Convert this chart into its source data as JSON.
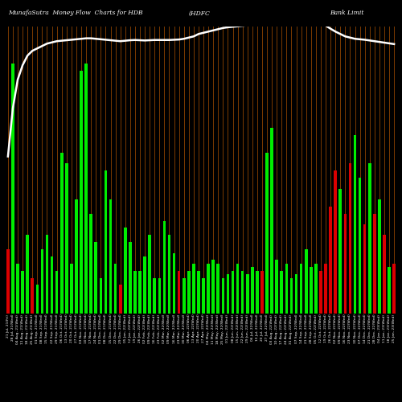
{
  "title_left": "MunafaSutra  Money Flow  Charts for HDB",
  "title_mid": "(HDFC",
  "title_right": "Bank Limit",
  "bg_color": "#000000",
  "bar_color_pos": "#00ee00",
  "bar_color_neg": "#dd0000",
  "line_color": "#ffffff",
  "grid_color": "#7B3A00",
  "bar_values": [
    0.18,
    0.7,
    0.14,
    0.12,
    0.22,
    0.1,
    0.08,
    0.18,
    0.22,
    0.16,
    0.12,
    0.45,
    0.42,
    0.14,
    0.32,
    0.68,
    0.7,
    0.28,
    0.2,
    0.1,
    0.4,
    0.32,
    0.14,
    0.08,
    0.24,
    0.2,
    0.12,
    0.12,
    0.16,
    0.22,
    0.1,
    0.1,
    0.26,
    0.22,
    0.17,
    0.12,
    0.1,
    0.12,
    0.14,
    0.12,
    0.1,
    0.14,
    0.15,
    0.14,
    0.1,
    0.11,
    0.12,
    0.14,
    0.12,
    0.11,
    0.13,
    0.12,
    0.12,
    0.45,
    0.52,
    0.15,
    0.12,
    0.14,
    0.1,
    0.11,
    0.14,
    0.18,
    0.13,
    0.14,
    0.12,
    0.14,
    0.3,
    0.4,
    0.35,
    0.28,
    0.42,
    0.5,
    0.38,
    0.25,
    0.42,
    0.28,
    0.32,
    0.22,
    0.13,
    0.14
  ],
  "bar_colors": [
    "r",
    "g",
    "g",
    "g",
    "g",
    "r",
    "g",
    "g",
    "g",
    "g",
    "g",
    "g",
    "g",
    "g",
    "g",
    "g",
    "g",
    "g",
    "g",
    "g",
    "g",
    "g",
    "g",
    "r",
    "g",
    "g",
    "g",
    "g",
    "g",
    "g",
    "g",
    "g",
    "g",
    "g",
    "g",
    "r",
    "g",
    "g",
    "g",
    "g",
    "g",
    "g",
    "g",
    "g",
    "g",
    "g",
    "g",
    "g",
    "g",
    "g",
    "g",
    "g",
    "r",
    "g",
    "g",
    "g",
    "g",
    "g",
    "g",
    "g",
    "g",
    "g",
    "g",
    "g",
    "r",
    "r",
    "r",
    "r",
    "g",
    "r",
    "r",
    "g",
    "g",
    "r",
    "g",
    "r",
    "g",
    "r",
    "g",
    "r"
  ],
  "line_values": [
    0.1,
    0.3,
    0.42,
    0.48,
    0.52,
    0.54,
    0.55,
    0.56,
    0.57,
    0.575,
    0.58,
    0.582,
    0.584,
    0.586,
    0.588,
    0.59,
    0.592,
    0.592,
    0.59,
    0.588,
    0.586,
    0.584,
    0.582,
    0.58,
    0.582,
    0.584,
    0.585,
    0.584,
    0.583,
    0.584,
    0.585,
    0.585,
    0.585,
    0.585,
    0.586,
    0.587,
    0.59,
    0.595,
    0.6,
    0.61,
    0.615,
    0.62,
    0.625,
    0.63,
    0.635,
    0.638,
    0.64,
    0.642,
    0.644,
    0.646,
    0.648,
    0.65,
    0.652,
    0.654,
    0.656,
    0.658,
    0.66,
    0.662,
    0.663,
    0.664,
    0.665,
    0.665,
    0.664,
    0.662,
    0.658,
    0.645,
    0.632,
    0.62,
    0.61,
    0.6,
    0.595,
    0.59,
    0.588,
    0.586,
    0.583,
    0.58,
    0.577,
    0.574,
    0.571,
    0.568
  ],
  "labels": [
    "21 Jul, 21(Fri)",
    "28 Jul, 21(Wed)",
    "04 Aug, 21(Wed)",
    "11 Aug, 21(Wed)",
    "18 Aug, 21(Wed)",
    "25 Aug, 21(Wed)",
    "01 Sep, 21(Wed)",
    "08 Sep, 21(Wed)",
    "15 Sep, 21(Wed)",
    "22 Sep, 21(Wed)",
    "29 Sep, 21(Wed)",
    "06 Oct, 21(Wed)",
    "13 Oct, 21(Wed)",
    "20 Oct, 21(Wed)",
    "27 Oct, 21(Wed)",
    "03 Nov, 21(Wed)",
    "10 Nov, 21(Wed)",
    "17 Nov, 21(Wed)",
    "24 Nov, 21(Wed)",
    "01 Dec, 21(Wed)",
    "08 Dec, 21(Wed)",
    "15 Dec, 21(Wed)",
    "22 Dec, 21(Wed)",
    "29 Dec, 21(Wed)",
    "05 Jan, 22(Wed)",
    "12 Jan, 22(Wed)",
    "19 Jan, 22(Wed)",
    "26 Jan, 22(Wed)",
    "02 Feb, 22(Wed)",
    "09 Feb, 22(Wed)",
    "16 Feb, 22(Wed)",
    "23 Feb, 22(Wed)",
    "02 Mar, 22(Wed)",
    "09 Mar, 22(Wed)",
    "16 Mar, 22(Wed)",
    "23 Mar, 22(Wed)",
    "30 Mar, 22(Wed)",
    "06 Apr, 22(Wed)",
    "13 Apr, 22(Wed)",
    "20 Apr, 22(Wed)",
    "27 Apr, 22(Wed)",
    "04 May, 22(Wed)",
    "11 May, 22(Wed)",
    "18 May, 22(Wed)",
    "25 May, 22(Wed)",
    "01 Jun, 22(Wed)",
    "08 Jun, 22(Wed)",
    "15 Jun, 22(Wed)",
    "22 Jun, 22(Wed)",
    "29 Jun, 22(Wed)",
    "06 Jul, 22(Wed)",
    "13 Jul, 22(Wed)",
    "20 Jul, 22(Wed)",
    "27 Jul, 22(Wed)",
    "03 Aug, 22(Wed)",
    "10 Aug, 22(Wed)",
    "17 Aug, 22(Wed)",
    "24 Aug, 22(Wed)",
    "31 Aug, 22(Wed)",
    "07 Sep, 22(Wed)",
    "14 Sep, 22(Wed)",
    "21 Sep, 22(Wed)",
    "28 Sep, 22(Wed)",
    "05 Oct, 22(Wed)",
    "12 Oct, 22(Wed)",
    "19 Oct, 22(Wed)",
    "26 Oct, 22(Wed)",
    "02 Nov, 22(Wed)",
    "09 Nov, 22(Wed)",
    "16 Nov, 22(Wed)",
    "23 Nov, 22(Wed)",
    "30 Nov, 22(Wed)",
    "07 Dec, 22(Wed)",
    "14 Dec, 22(Wed)",
    "21 Dec, 22(Wed)",
    "28 Dec, 22(Wed)",
    "04 Jan, 23(Wed)",
    "11 Jan, 23(Wed)",
    "18 Jan, 23(Wed)",
    "25 Jan, 23(Wed)"
  ]
}
